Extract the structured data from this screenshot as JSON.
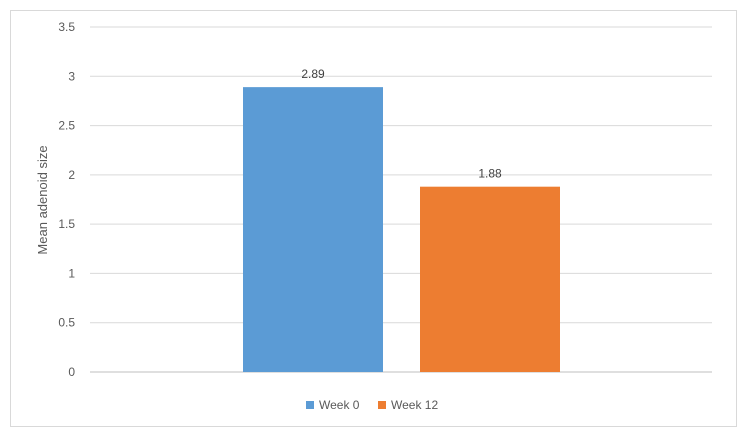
{
  "chart_data": {
    "type": "bar",
    "categories": [
      "Week 0",
      "Week 12"
    ],
    "series": [
      {
        "name": "Week 0",
        "values": [
          2.89,
          null
        ],
        "color": "#5b9bd5"
      },
      {
        "name": "Week 12",
        "values": [
          null,
          1.88
        ],
        "color": "#ed7d31"
      }
    ],
    "data_labels": [
      "2.89",
      "1.88"
    ],
    "title": "",
    "xlabel": "",
    "ylabel": "Mean adenoid size",
    "ylim": [
      0,
      3.5
    ],
    "yticks": [
      0,
      0.5,
      1,
      1.5,
      2,
      2.5,
      3,
      3.5
    ],
    "ytick_labels": [
      "0",
      "0.5",
      "1",
      "1.5",
      "2",
      "2.5",
      "3",
      "3.5"
    ],
    "grid": true,
    "legend": {
      "position": "bottom",
      "entries": [
        "Week 0",
        "Week 12"
      ]
    }
  }
}
